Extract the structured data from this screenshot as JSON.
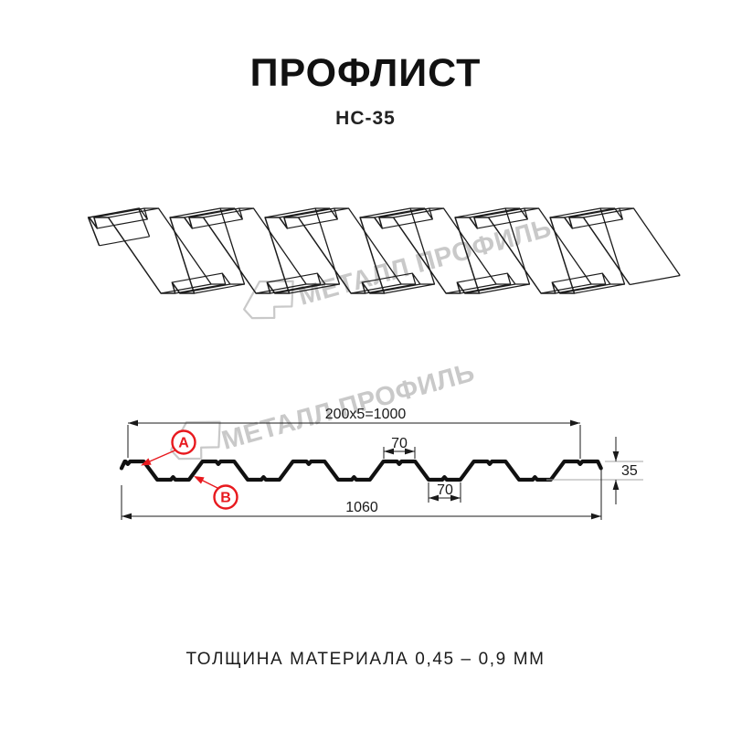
{
  "header": {
    "title": "ПРОФЛИСТ",
    "subtitle": "НС-35"
  },
  "footer": {
    "note": "ТОЛЩИНА МАТЕРИАЛА 0,45 – 0,9 ММ"
  },
  "watermark": {
    "text": "МЕТАЛЛ ПРОФИЛЬ",
    "color": "#c9c9c9"
  },
  "annotations": {
    "label_a": "А",
    "label_b": "В",
    "color": "#e8191e"
  },
  "dimensions": {
    "pitch": "200x5=1000",
    "crest_width": "70",
    "valley_width": "70",
    "height": "35",
    "overall_width": "1060"
  },
  "profile": {
    "module_mm": 200,
    "modules": 5,
    "crest_mm": 70,
    "valley_mm": 70,
    "height_mm": 35,
    "overall_mm": 1060,
    "line_color": "#1c1c1c"
  }
}
